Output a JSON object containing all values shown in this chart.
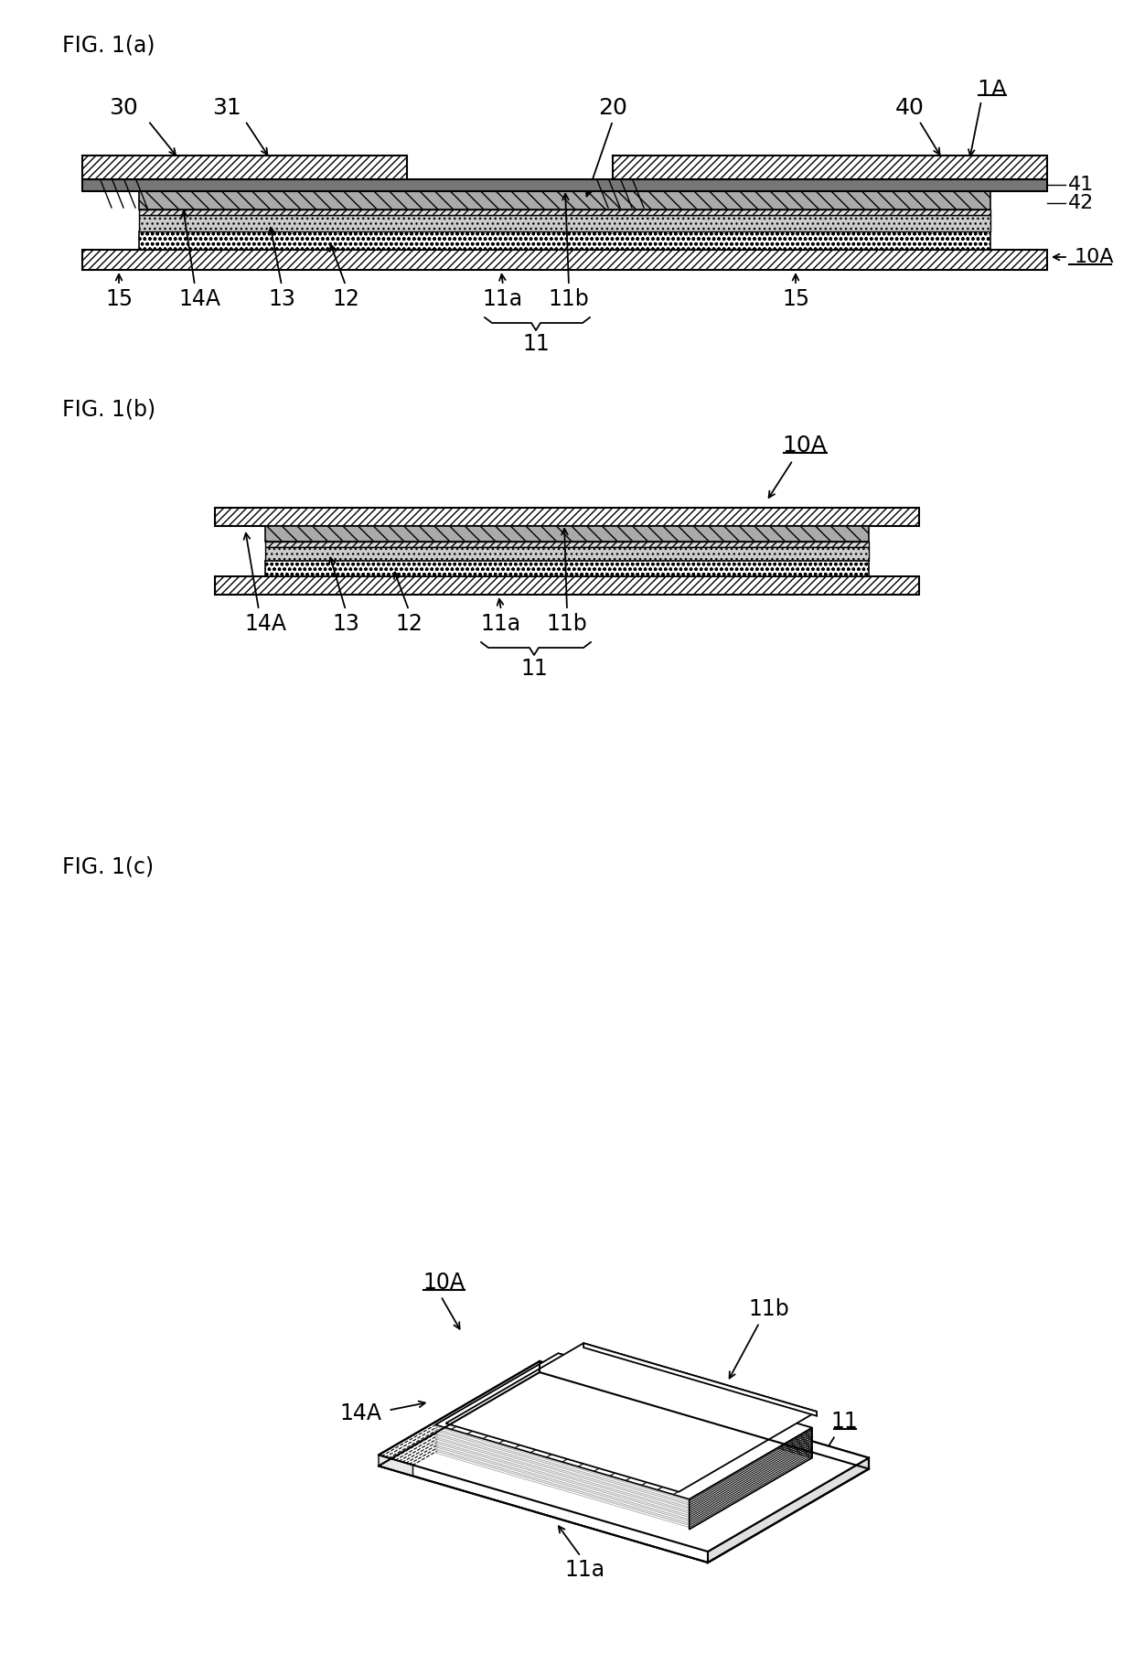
{
  "fig_title_a": "FIG. 1(a)",
  "fig_title_b": "FIG. 1(b)",
  "fig_title_c": "FIG. 1(c)",
  "bg_color": "#ffffff",
  "line_color": "#000000"
}
